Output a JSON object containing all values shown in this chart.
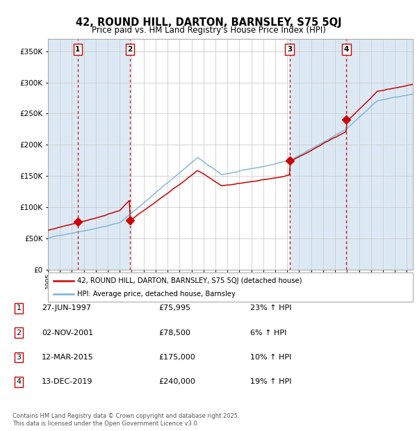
{
  "title": "42, ROUND HILL, DARTON, BARNSLEY, S75 5QJ",
  "subtitle": "Price paid vs. HM Land Registry's House Price Index (HPI)",
  "legend_line1": "42, ROUND HILL, DARTON, BARNSLEY, S75 5QJ (detached house)",
  "legend_line2": "HPI: Average price, detached house, Barnsley",
  "footer": "Contains HM Land Registry data © Crown copyright and database right 2025.\nThis data is licensed under the Open Government Licence v3.0.",
  "purchases": [
    {
      "num": 1,
      "date": "27-JUN-1997",
      "price": 75995,
      "year": 1997.49,
      "pct": "23%",
      "dir": "↑"
    },
    {
      "num": 2,
      "date": "02-NOV-2001",
      "price": 78500,
      "year": 2001.84,
      "pct": "6%",
      "dir": "↑"
    },
    {
      "num": 3,
      "date": "12-MAR-2015",
      "price": 175000,
      "year": 2015.19,
      "pct": "10%",
      "dir": "↑"
    },
    {
      "num": 4,
      "date": "13-DEC-2019",
      "price": 240000,
      "year": 2019.95,
      "pct": "19%",
      "dir": "↑"
    }
  ],
  "table_rows": [
    [
      "1",
      "27-JUN-1997",
      "£75,995",
      "23% ↑ HPI"
    ],
    [
      "2",
      "02-NOV-2001",
      "£78,500",
      "6% ↑ HPI"
    ],
    [
      "3",
      "12-MAR-2015",
      "£175,000",
      "10% ↑ HPI"
    ],
    [
      "4",
      "13-DEC-2019",
      "£240,000",
      "19% ↑ HPI"
    ]
  ],
  "red_color": "#cc0000",
  "blue_color": "#7ab0d4",
  "vline_color": "#cc0000",
  "shade_color": "#dce9f5",
  "grid_color": "#cccccc",
  "ylim": [
    0,
    370000
  ],
  "yticks": [
    0,
    50000,
    100000,
    150000,
    200000,
    250000,
    300000,
    350000
  ],
  "xlim_start": 1995.0,
  "xlim_end": 2025.5,
  "xticks": [
    1995,
    1996,
    1997,
    1998,
    1999,
    2000,
    2001,
    2002,
    2003,
    2004,
    2005,
    2006,
    2007,
    2008,
    2009,
    2010,
    2011,
    2012,
    2013,
    2014,
    2015,
    2016,
    2017,
    2018,
    2019,
    2020,
    2021,
    2022,
    2023,
    2024,
    2025
  ],
  "shade_regions": [
    [
      1995.0,
      1997.49,
      true
    ],
    [
      1997.49,
      2001.84,
      true
    ],
    [
      2001.84,
      2015.19,
      false
    ],
    [
      2015.19,
      2019.95,
      true
    ],
    [
      2019.95,
      2025.5,
      true
    ]
  ]
}
